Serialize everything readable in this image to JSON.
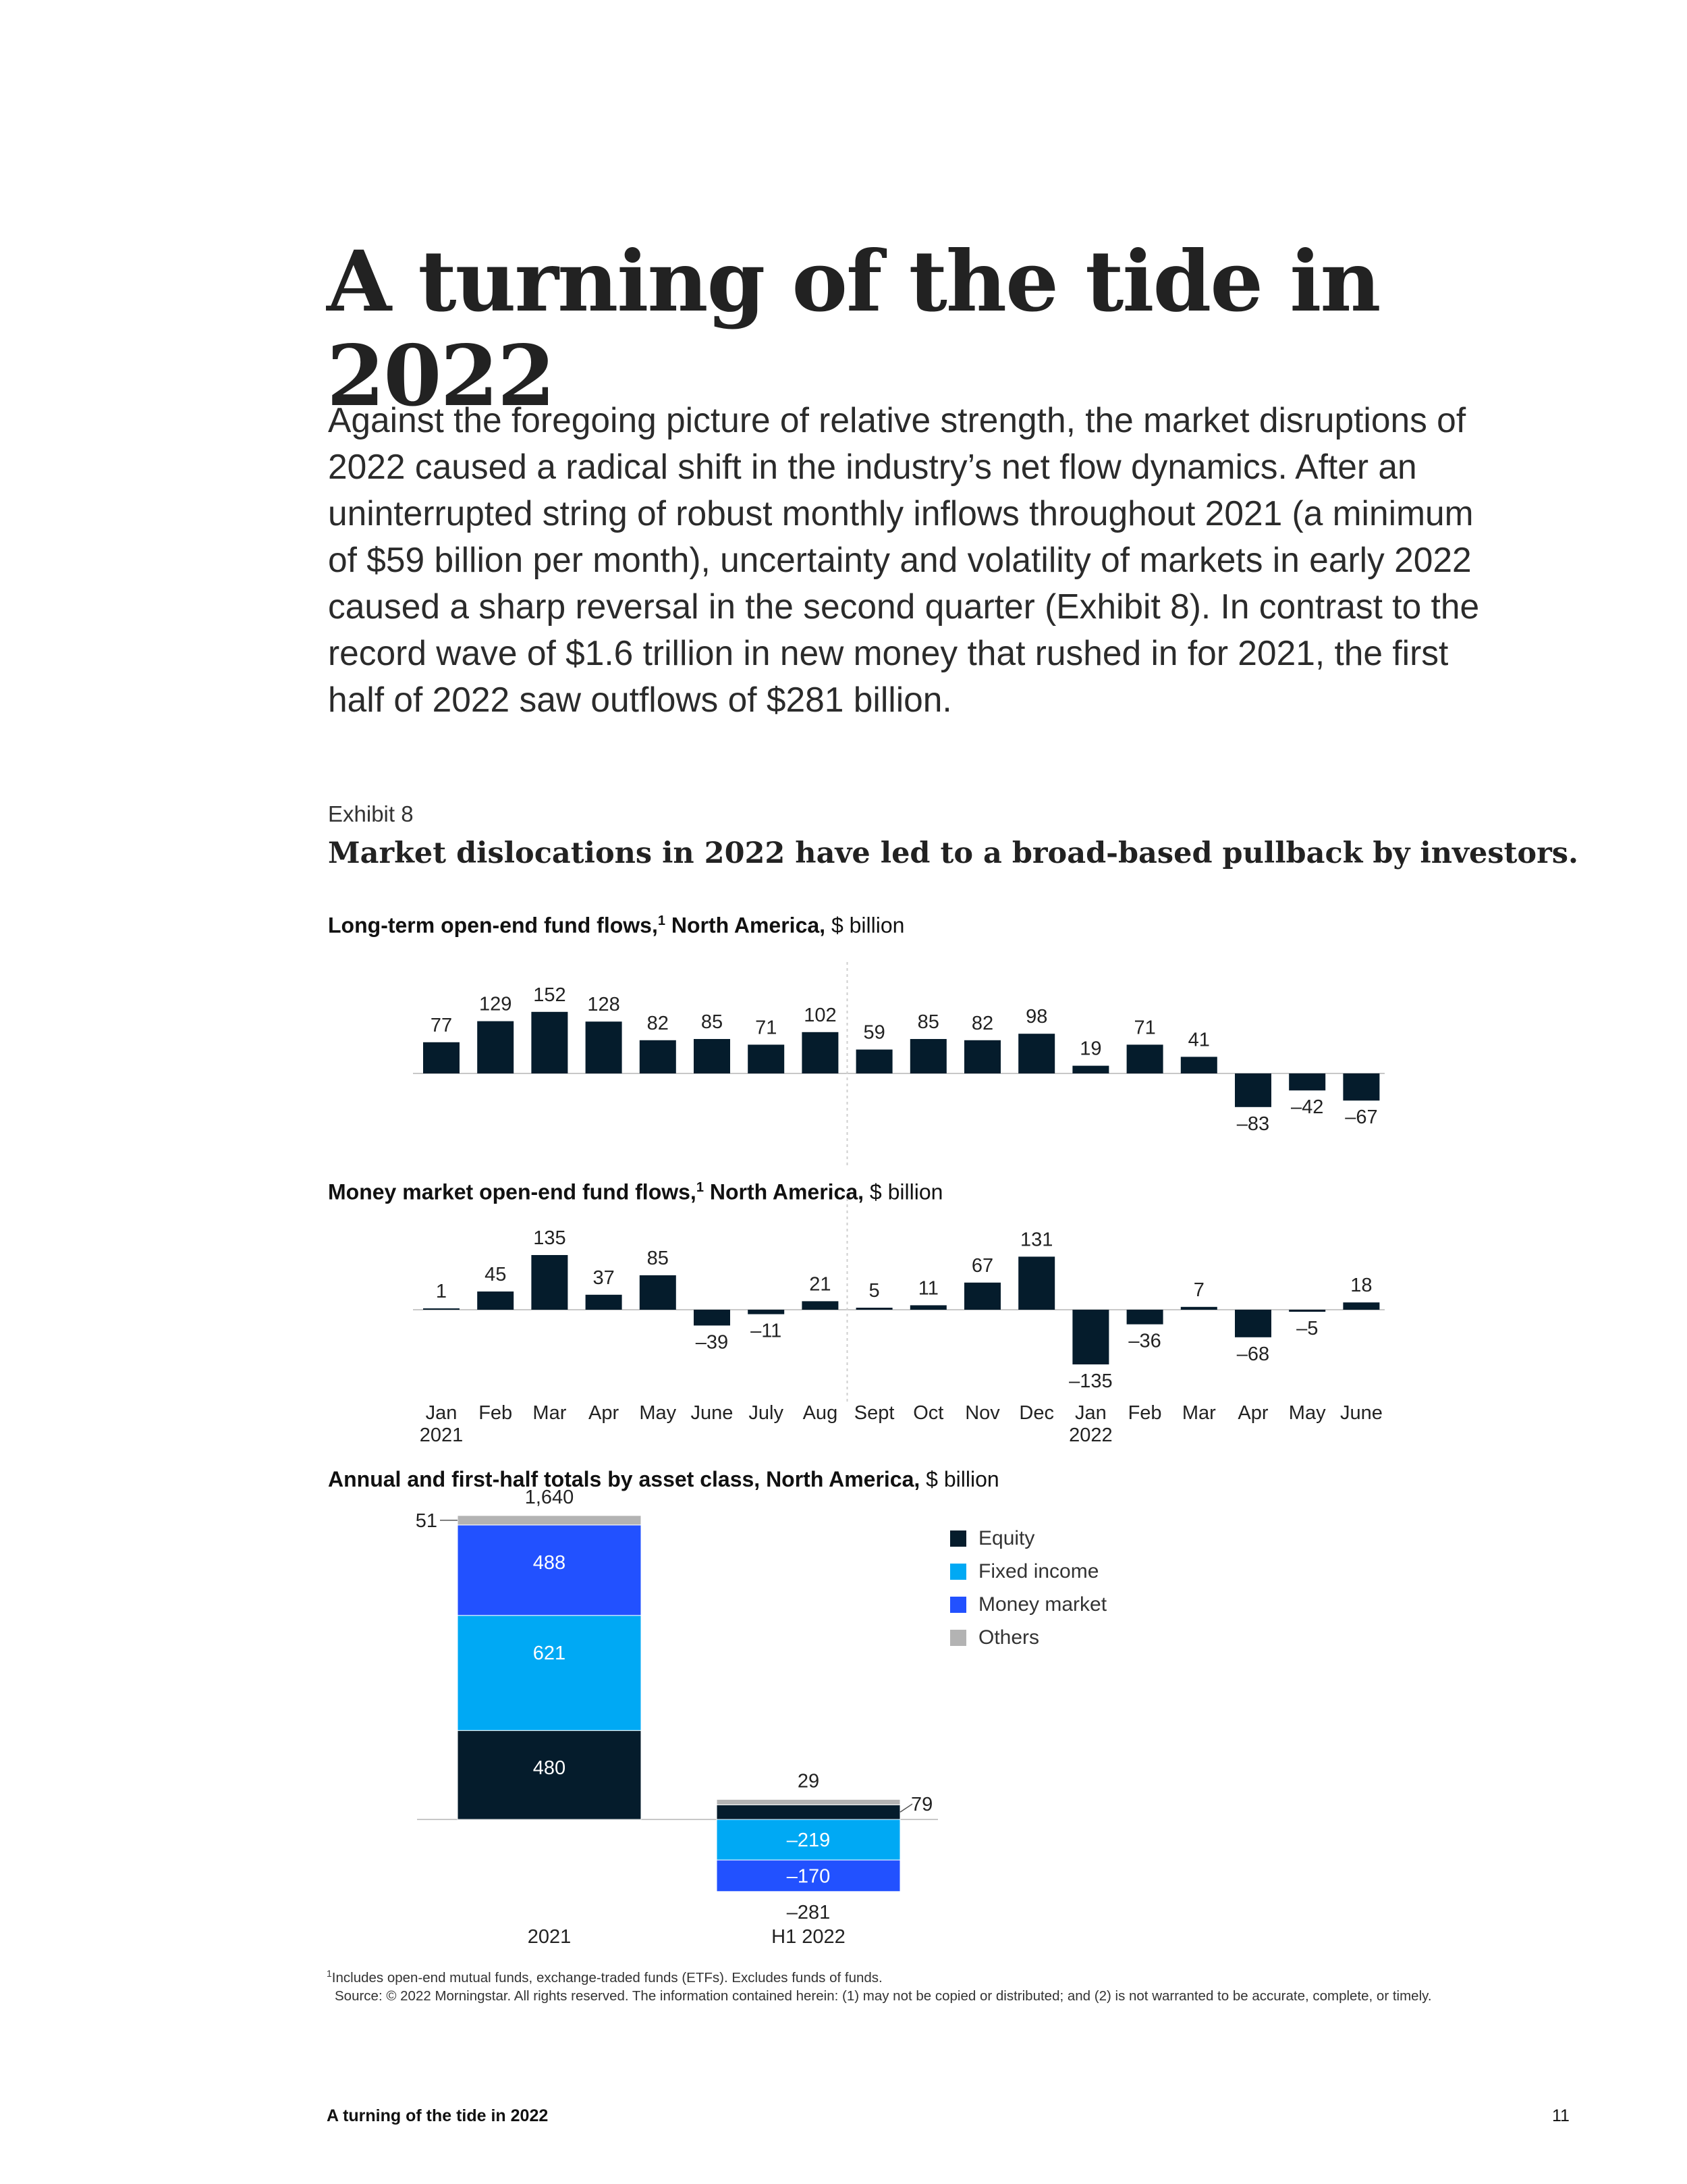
{
  "page": {
    "title": "A turning of the tide in 2022",
    "intro": "Against the foregoing picture of relative strength, the market disruptions of 2022 caused a radical shift in the industry’s net flow dynamics. After an uninterrupted string of robust monthly inflows throughout 2021 (a minimum of $59 billion per month), uncertainty and volatility of markets in early 2022 caused a sharp reversal in the second quarter (Exhibit 8). In contrast to the record wave of $1.6 trillion in new money that rushed in for 2021, the first half of 2022 saw outflows of $281 billion.",
    "exhibit_label": "Exhibit 8",
    "exhibit_title": "Market dislocations in 2022 have led to a broad-based pullback by investors.",
    "footnote_line1": "Includes open-end mutual funds, exchange-traded funds (ETFs). Excludes funds of funds.",
    "footnote_line2": "Source: © 2022 Morningstar. All rights reserved. The information contained herein: (1) may not be copied or distributed; and (2) is not warranted to be accurate, complete, or timely.",
    "footnote_marker": "1",
    "footer_title": "A turning of the tide in 2022",
    "page_number": "11"
  },
  "subtitles": {
    "lt_bold": "Long-term open-end fund flows,",
    "lt_rest": " North America,",
    "lt_unit": " $ billion",
    "mm_bold": "Money market open-end fund flows,",
    "mm_rest": " North America,",
    "mm_unit": " $ billion",
    "an_bold": "Annual and first-half totals by asset class, North America,",
    "an_unit": " $ billion",
    "sup": "1"
  },
  "colors": {
    "navy": "#051c2c",
    "equity": "#051c2c",
    "fixed_income": "#00a9f4",
    "money_market": "#2251ff",
    "others": "#b3b3b3",
    "axis": "#c8c8c8"
  },
  "chart_data": [
    {
      "type": "bar",
      "title": "Long-term open-end fund flows, North America, $ billion",
      "categories": [
        "Jan",
        "Feb",
        "Mar",
        "Apr",
        "May",
        "June",
        "July",
        "Aug",
        "Sept",
        "Oct",
        "Nov",
        "Dec",
        "Jan",
        "Feb",
        "Mar",
        "Apr",
        "May",
        "June"
      ],
      "values": [
        77,
        129,
        152,
        128,
        82,
        85,
        71,
        102,
        59,
        85,
        82,
        98,
        19,
        71,
        41,
        -83,
        -42,
        -67
      ],
      "labels": [
        "77",
        "129",
        "152",
        "128",
        "82",
        "85",
        "71",
        "102",
        "59",
        "85",
        "82",
        "98",
        "19",
        "71",
        "41",
        "–83",
        "–42",
        "–67"
      ],
      "year_labels": [
        "2021",
        "2022"
      ],
      "divider_after_index": 7
    },
    {
      "type": "bar",
      "title": "Money market open-end fund flows, North America, $ billion",
      "categories": [
        "Jan",
        "Feb",
        "Mar",
        "Apr",
        "May",
        "June",
        "July",
        "Aug",
        "Sept",
        "Oct",
        "Nov",
        "Dec",
        "Jan",
        "Feb",
        "Mar",
        "Apr",
        "May",
        "June"
      ],
      "values": [
        1,
        45,
        135,
        37,
        85,
        -39,
        -11,
        21,
        5,
        11,
        67,
        131,
        -135,
        -36,
        7,
        -68,
        -5,
        18
      ],
      "labels": [
        "1",
        "45",
        "135",
        "37",
        "85",
        "–39",
        "–11",
        "21",
        "5",
        "11",
        "67",
        "131",
        "–135",
        "–36",
        "7",
        "–68",
        "–5",
        "18"
      ],
      "year_labels": [
        "2021",
        "2022"
      ],
      "divider_after_index": 7
    },
    {
      "type": "bar",
      "stacked": true,
      "title": "Annual and first-half totals by asset class, North America, $ billion",
      "categories": [
        "2021",
        "H1 2022"
      ],
      "totals": [
        1640,
        -281
      ],
      "total_labels": [
        "1,640",
        "–281"
      ],
      "series": [
        {
          "name": "Equity",
          "values": [
            480,
            79
          ],
          "labels": [
            "480",
            "79"
          ]
        },
        {
          "name": "Fixed income",
          "values": [
            621,
            -219
          ],
          "labels": [
            "621",
            "–219"
          ]
        },
        {
          "name": "Money market",
          "values": [
            488,
            -170
          ],
          "labels": [
            "488",
            "–170"
          ]
        },
        {
          "name": "Others",
          "values": [
            51,
            29
          ],
          "labels": [
            "51",
            "29"
          ]
        }
      ],
      "legend": [
        "Equity",
        "Fixed income",
        "Money market",
        "Others"
      ]
    }
  ]
}
